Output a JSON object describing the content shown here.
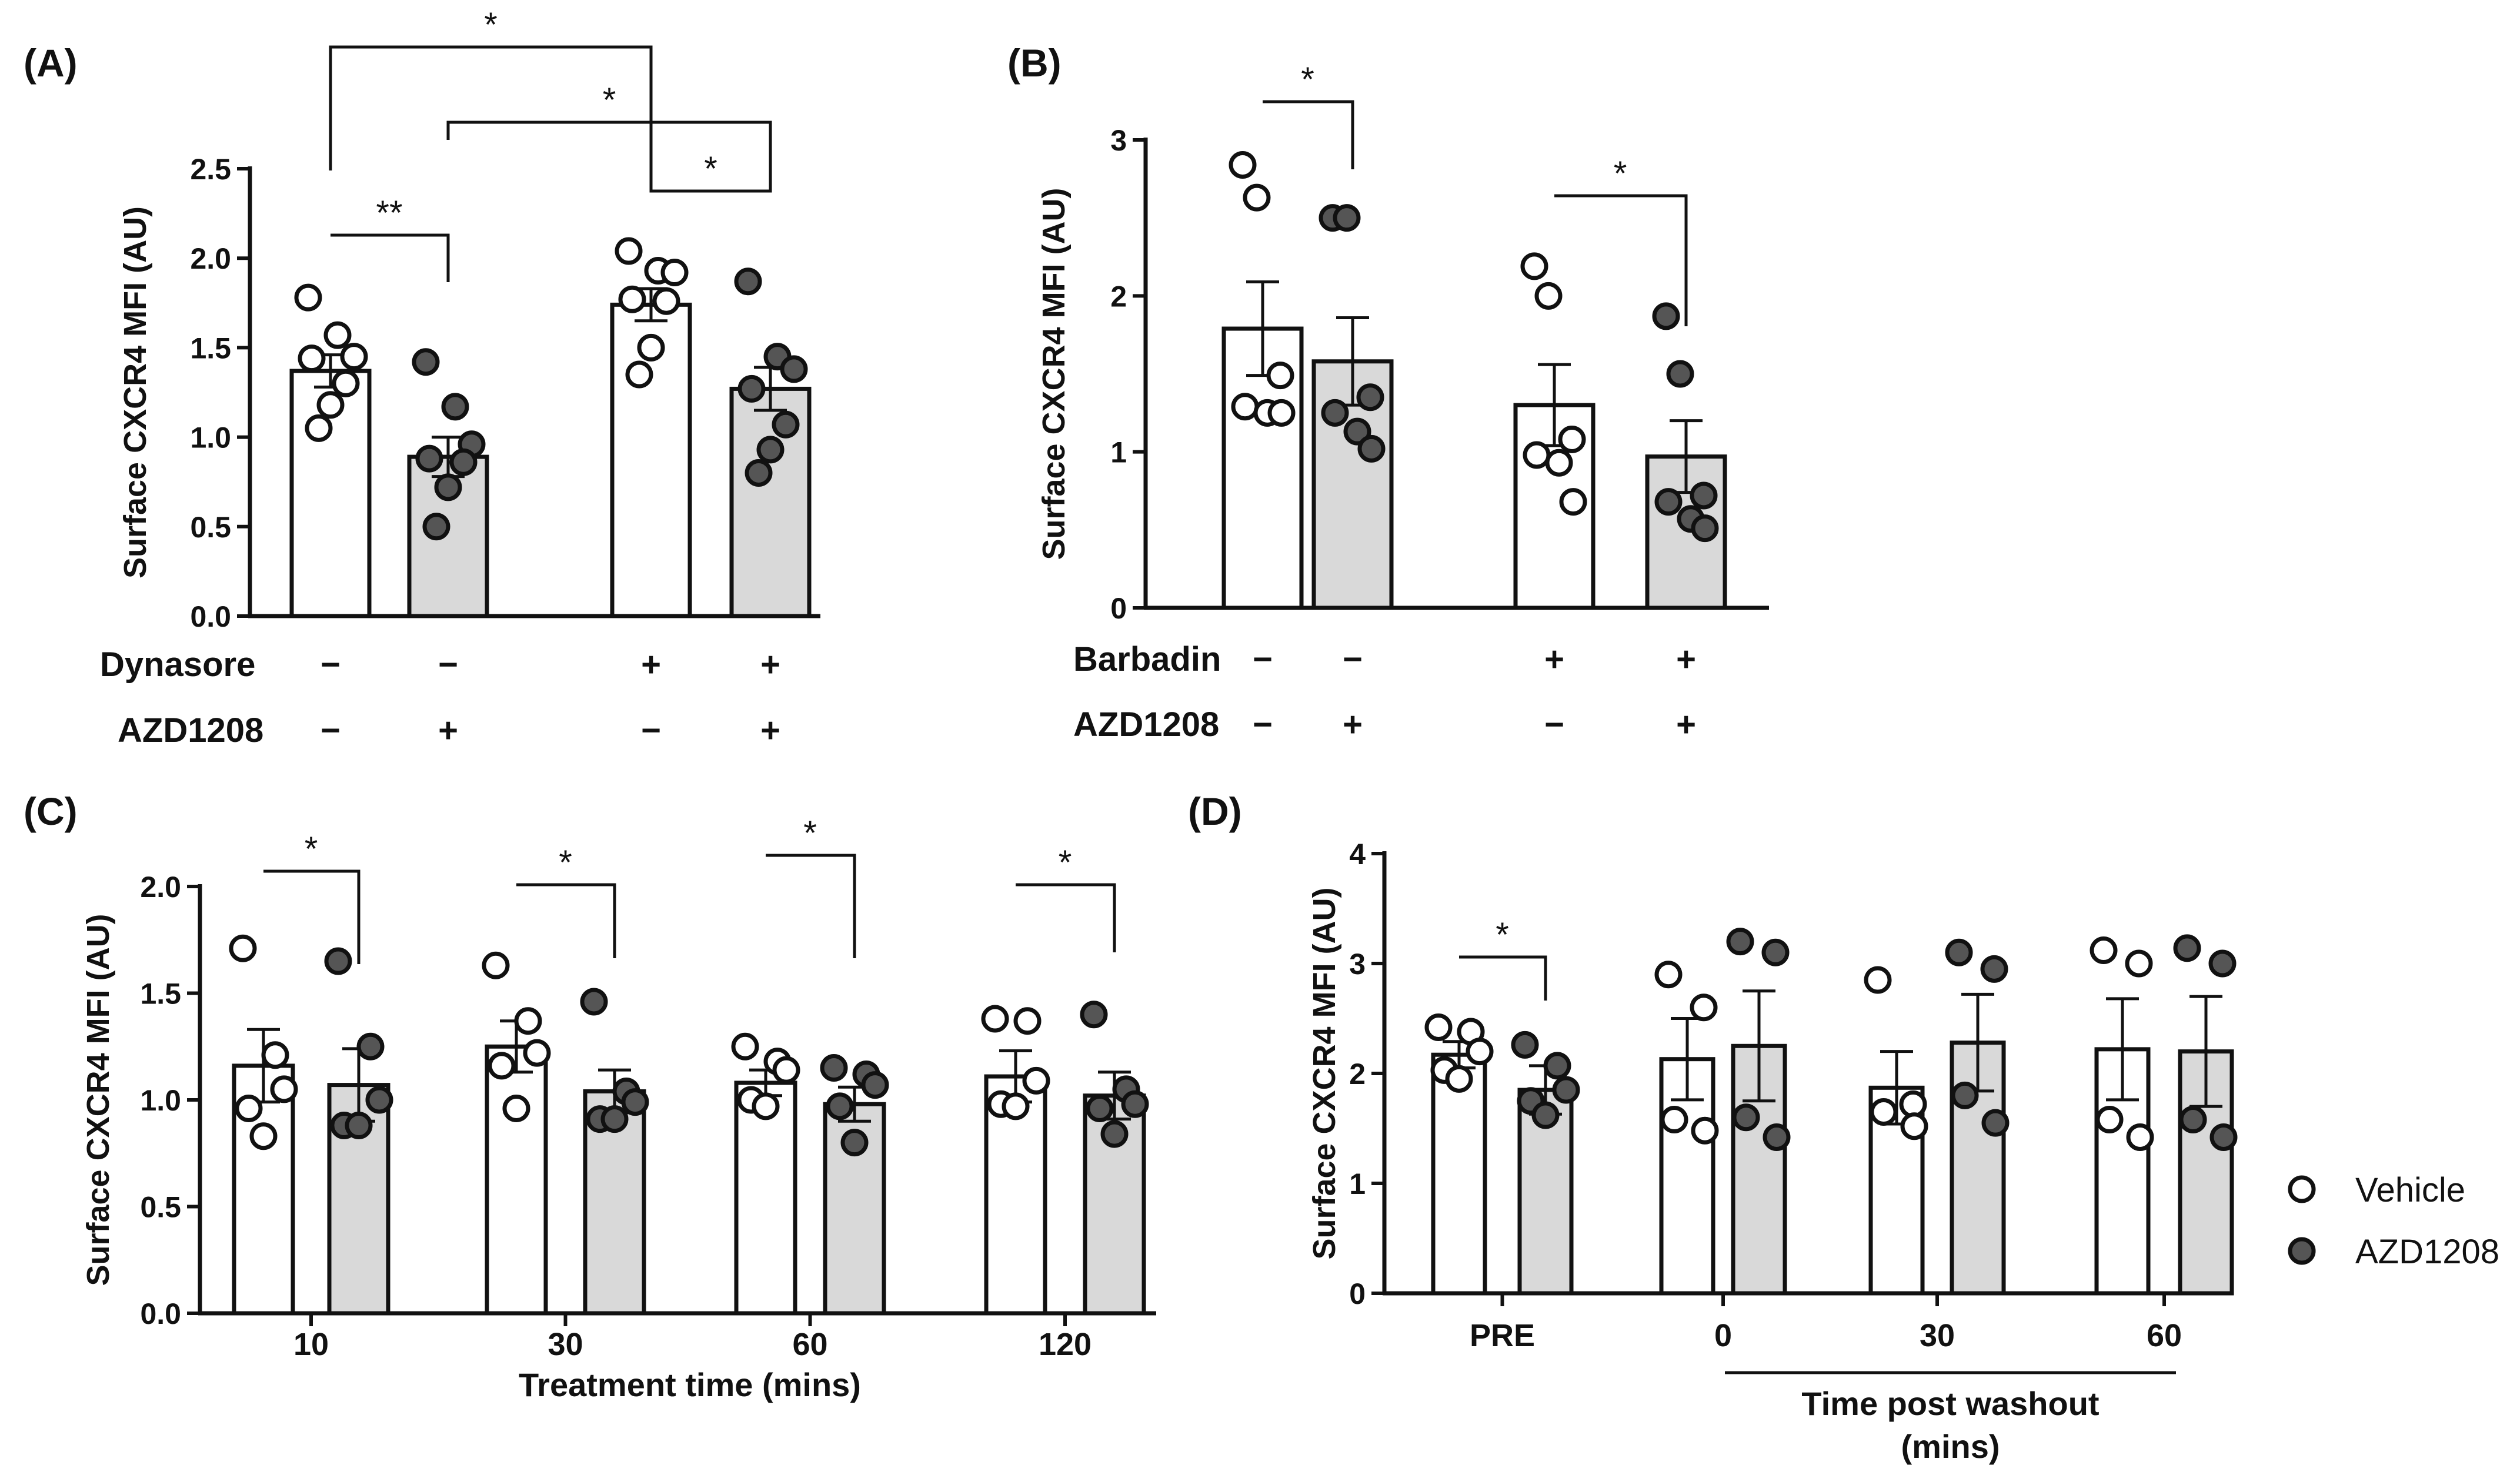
{
  "panels": [
    {
      "id": "A",
      "panel_label": "(A)",
      "chart_data": {
        "type": "bar",
        "ylabel": "Surface CXCR4 MFI (AU)",
        "ylim": [
          0,
          2.5
        ],
        "yticks": [
          0.0,
          0.5,
          1.0,
          1.5,
          2.0,
          2.5
        ],
        "ytick_labels": [
          "0.0",
          "0.5",
          "1.0",
          "1.5",
          "2.0",
          "2.5"
        ],
        "bars": [
          {
            "group": "Vehicle",
            "mean": 1.37,
            "sem": 0.09,
            "points": [
              1.78,
              1.57,
              1.45,
              1.44,
              1.3,
              1.18,
              1.05
            ]
          },
          {
            "group": "AZD1208",
            "mean": 0.89,
            "sem": 0.11,
            "points": [
              1.42,
              1.17,
              0.96,
              0.88,
              0.86,
              0.72,
              0.5
            ]
          },
          {
            "group": "Vehicle",
            "mean": 1.74,
            "sem": 0.09,
            "points": [
              2.04,
              1.93,
              1.92,
              1.77,
              1.76,
              1.5,
              1.35
            ]
          },
          {
            "group": "AZD1208",
            "mean": 1.27,
            "sem": 0.12,
            "points": [
              1.87,
              1.45,
              1.38,
              1.27,
              1.07,
              0.93,
              0.8
            ]
          }
        ],
        "conditions": [
          {
            "label": "Dynasore",
            "values": [
              "−",
              "−",
              "+",
              "+"
            ]
          },
          {
            "label": "AZD1208",
            "values": [
              "−",
              "+",
              "−",
              "+"
            ]
          }
        ],
        "significance": [
          {
            "from": 0,
            "to": 1,
            "label": "**"
          },
          {
            "from": 2,
            "to": 3,
            "label": "*"
          },
          {
            "from": 1,
            "to": 3,
            "label": "*"
          },
          {
            "from": 0,
            "to": 2,
            "label": "*"
          }
        ]
      }
    },
    {
      "id": "B",
      "panel_label": "(B)",
      "chart_data": {
        "type": "bar",
        "ylabel": "Surface CXCR4 MFI (AU)",
        "ylim": [
          0,
          3
        ],
        "yticks": [
          0,
          1,
          2,
          3
        ],
        "ytick_labels": [
          "0",
          "1",
          "2",
          "3"
        ],
        "bars": [
          {
            "group": "Vehicle",
            "mean": 1.79,
            "sem": 0.3,
            "points": [
              2.84,
              2.63,
              1.49,
              1.29,
              1.25,
              1.25
            ]
          },
          {
            "group": "AZD1208",
            "mean": 1.58,
            "sem": 0.28,
            "points": [
              2.5,
              2.5,
              1.35,
              1.25,
              1.13,
              1.02
            ]
          },
          {
            "group": "Vehicle",
            "mean": 1.3,
            "sem": 0.26,
            "points": [
              2.19,
              2.0,
              1.08,
              0.98,
              0.93,
              0.68
            ]
          },
          {
            "group": "AZD1208",
            "mean": 0.97,
            "sem": 0.23,
            "points": [
              1.87,
              1.5,
              0.72,
              0.68,
              0.57,
              0.51
            ]
          }
        ],
        "conditions": [
          {
            "label": "Barbadin",
            "values": [
              "−",
              "−",
              "+",
              "+"
            ]
          },
          {
            "label": "AZD1208",
            "values": [
              "−",
              "+",
              "−",
              "+"
            ]
          }
        ],
        "significance": [
          {
            "from": 0,
            "to": 1,
            "label": "*"
          },
          {
            "from": 2,
            "to": 3,
            "label": "*"
          }
        ]
      }
    },
    {
      "id": "C",
      "panel_label": "(C)",
      "chart_data": {
        "type": "bar",
        "ylabel": "Surface CXCR4 MFI (AU)",
        "xlabel": "Treatment time (mins)",
        "ylim": [
          0,
          2.0
        ],
        "yticks": [
          0.0,
          0.5,
          1.0,
          1.5,
          2.0
        ],
        "ytick_labels": [
          "0.0",
          "0.5",
          "1.0",
          "1.5",
          "2.0"
        ],
        "categories": [
          "10",
          "30",
          "60",
          "120"
        ],
        "bars": [
          {
            "group": "Vehicle",
            "mean": 1.16,
            "sem": 0.17,
            "points": [
              1.71,
              1.21,
              1.05,
              0.96,
              0.83
            ]
          },
          {
            "group": "AZD1208",
            "mean": 1.07,
            "sem": 0.17,
            "points": [
              1.65,
              1.25,
              1.0,
              0.88,
              0.88
            ]
          },
          {
            "group": "Vehicle",
            "mean": 1.25,
            "sem": 0.12,
            "points": [
              1.63,
              1.37,
              1.22,
              1.16,
              0.96
            ]
          },
          {
            "group": "AZD1208",
            "mean": 1.04,
            "sem": 0.1,
            "points": [
              1.46,
              1.04,
              0.99,
              0.91,
              0.91
            ]
          },
          {
            "group": "Vehicle",
            "mean": 1.08,
            "sem": 0.06,
            "points": [
              1.25,
              1.18,
              1.14,
              1.0,
              0.97
            ]
          },
          {
            "group": "AZD1208",
            "mean": 0.98,
            "sem": 0.08,
            "points": [
              1.15,
              1.12,
              1.07,
              0.97,
              0.8
            ]
          },
          {
            "group": "Vehicle",
            "mean": 1.11,
            "sem": 0.12,
            "points": [
              1.38,
              1.37,
              1.09,
              0.98,
              0.97
            ]
          },
          {
            "group": "AZD1208",
            "mean": 1.02,
            "sem": 0.11,
            "points": [
              1.4,
              1.05,
              0.98,
              0.96,
              0.84
            ]
          }
        ],
        "significance": [
          {
            "from": 0,
            "to": 1,
            "label": "*"
          },
          {
            "from": 2,
            "to": 3,
            "label": "*"
          },
          {
            "from": 4,
            "to": 5,
            "label": "*"
          },
          {
            "from": 6,
            "to": 7,
            "label": "*"
          }
        ]
      }
    },
    {
      "id": "D",
      "panel_label": "(D)",
      "chart_data": {
        "type": "bar",
        "ylabel": "Surface CXCR4 MFI (AU)",
        "xlabel": "Time post washout\n(mins)",
        "ylim": [
          0,
          4
        ],
        "yticks": [
          0,
          1,
          2,
          3,
          4
        ],
        "ytick_labels": [
          "0",
          "1",
          "2",
          "3",
          "4"
        ],
        "categories": [
          "PRE",
          "0",
          "30",
          "60"
        ],
        "bars": [
          {
            "group": "Vehicle",
            "mean": 2.17,
            "sem": 0.12,
            "points": [
              2.42,
              2.38,
              2.2,
              2.03,
              1.95
            ]
          },
          {
            "group": "AZD1208",
            "mean": 1.85,
            "sem": 0.22,
            "points": [
              2.26,
              2.07,
              1.85,
              1.75,
              1.62
            ]
          },
          {
            "group": "Vehicle",
            "mean": 2.13,
            "sem": 0.37,
            "points": [
              2.9,
              2.6,
              1.58,
              1.48
            ]
          },
          {
            "group": "AZD1208",
            "mean": 2.25,
            "sem": 0.5,
            "points": [
              3.2,
              3.1,
              1.6,
              1.42
            ]
          },
          {
            "group": "Vehicle",
            "mean": 1.87,
            "sem": 0.33,
            "points": [
              2.85,
              1.72,
              1.65,
              1.52
            ]
          },
          {
            "group": "AZD1208",
            "mean": 2.28,
            "sem": 0.44,
            "points": [
              3.1,
              2.95,
              1.8,
              1.55
            ]
          },
          {
            "group": "Vehicle",
            "mean": 2.22,
            "sem": 0.46,
            "points": [
              3.12,
              3.0,
              1.58,
              1.42
            ]
          },
          {
            "group": "AZD1208",
            "mean": 2.2,
            "sem": 0.5,
            "points": [
              3.14,
              3.0,
              1.58,
              1.42
            ]
          }
        ],
        "significance": [
          {
            "from": 0,
            "to": 1,
            "label": "*"
          }
        ]
      }
    }
  ],
  "legend": {
    "items": [
      {
        "label": "Vehicle",
        "marker": "open-circle"
      },
      {
        "label": "AZD1208",
        "marker": "filled-circle"
      }
    ]
  },
  "colors": {
    "vehicle_bar": "#ffffff",
    "azd_bar": "#d9d9d9",
    "vehicle_point": "#ffffff",
    "azd_point": "#555555",
    "stroke": "#111111"
  }
}
